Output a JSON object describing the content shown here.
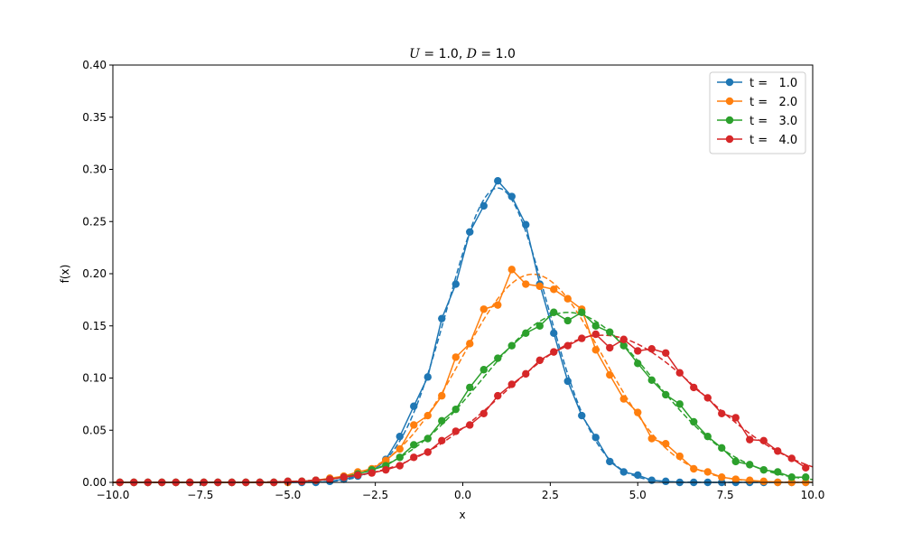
{
  "chart_data": {
    "type": "line",
    "title": "U = 1.0, D = 1.0",
    "xlabel": "x",
    "ylabel": "f(x)",
    "xlim": [
      -10,
      10
    ],
    "ylim": [
      0,
      0.4
    ],
    "xticks": [
      -10,
      -7.5,
      -5,
      -2.5,
      0,
      2.5,
      5,
      7.5,
      10
    ],
    "xtick_labels": [
      "−10.0",
      "−7.5",
      "−5.0",
      "−2.5",
      "0.0",
      "2.5",
      "5.0",
      "7.5",
      "10.0"
    ],
    "yticks": [
      0,
      0.05,
      0.1,
      0.15,
      0.2,
      0.25,
      0.3,
      0.35,
      0.4
    ],
    "ytick_labels": [
      "0.00",
      "0.05",
      "0.10",
      "0.15",
      "0.20",
      "0.25",
      "0.30",
      "0.35",
      "0.40"
    ],
    "grid": false,
    "legend_position": "top-right",
    "x": [
      -9.8,
      -9.4,
      -9.0,
      -8.6,
      -8.2,
      -7.8,
      -7.4,
      -7.0,
      -6.6,
      -6.2,
      -5.8,
      -5.4,
      -5.0,
      -4.6,
      -4.2,
      -3.8,
      -3.4,
      -3.0,
      -2.6,
      -2.2,
      -1.8,
      -1.4,
      -1.0,
      -0.6,
      -0.2,
      0.2,
      0.6,
      1.0,
      1.4,
      1.8,
      2.2,
      2.6,
      3.0,
      3.4,
      3.8,
      4.2,
      4.6,
      5.0,
      5.4,
      5.8,
      6.2,
      6.6,
      7.0,
      7.4,
      7.8,
      8.2,
      8.6,
      9.0,
      9.4,
      9.8
    ],
    "series": [
      {
        "name": "t =   1.0",
        "color": "#1f77b4",
        "t": 1.0,
        "values": [
          0,
          0,
          0,
          0,
          0,
          0,
          0,
          0,
          0,
          0,
          0,
          0,
          0,
          0,
          0,
          0.001,
          0.003,
          0.006,
          0.01,
          0.022,
          0.044,
          0.073,
          0.101,
          0.157,
          0.19,
          0.24,
          0.265,
          0.289,
          0.274,
          0.247,
          0.19,
          0.143,
          0.097,
          0.064,
          0.043,
          0.02,
          0.01,
          0.007,
          0.002,
          0.001,
          0,
          0,
          0,
          0,
          0,
          0,
          0,
          0,
          0,
          0
        ]
      },
      {
        "name": "t =   2.0",
        "color": "#ff7f0e",
        "t": 2.0,
        "values": [
          0,
          0,
          0,
          0,
          0,
          0,
          0,
          0,
          0,
          0,
          0,
          0,
          0,
          0.001,
          0.002,
          0.004,
          0.006,
          0.01,
          0.013,
          0.021,
          0.032,
          0.055,
          0.064,
          0.083,
          0.12,
          0.133,
          0.166,
          0.17,
          0.204,
          0.19,
          0.188,
          0.185,
          0.176,
          0.166,
          0.127,
          0.103,
          0.08,
          0.067,
          0.042,
          0.037,
          0.025,
          0.013,
          0.01,
          0.005,
          0.003,
          0.002,
          0.001,
          0,
          0,
          0
        ]
      },
      {
        "name": "t =   3.0",
        "color": "#2ca02c",
        "t": 3.0,
        "values": [
          0,
          0,
          0,
          0,
          0,
          0,
          0,
          0,
          0,
          0,
          0,
          0,
          0.001,
          0.001,
          0.002,
          0.003,
          0.005,
          0.008,
          0.012,
          0.016,
          0.024,
          0.036,
          0.042,
          0.059,
          0.07,
          0.091,
          0.108,
          0.119,
          0.131,
          0.143,
          0.15,
          0.163,
          0.155,
          0.163,
          0.15,
          0.144,
          0.131,
          0.114,
          0.098,
          0.084,
          0.075,
          0.058,
          0.044,
          0.033,
          0.02,
          0.017,
          0.012,
          0.01,
          0.005,
          0.005
        ]
      },
      {
        "name": "t =   4.0",
        "color": "#d62728",
        "t": 4.0,
        "values": [
          0,
          0,
          0,
          0,
          0,
          0,
          0,
          0,
          0,
          0,
          0,
          0,
          0.001,
          0.001,
          0.002,
          0.003,
          0.005,
          0.007,
          0.009,
          0.012,
          0.016,
          0.024,
          0.029,
          0.04,
          0.049,
          0.055,
          0.066,
          0.083,
          0.094,
          0.104,
          0.117,
          0.125,
          0.131,
          0.138,
          0.142,
          0.129,
          0.137,
          0.126,
          0.128,
          0.124,
          0.105,
          0.091,
          0.081,
          0.066,
          0.062,
          0.041,
          0.04,
          0.03,
          0.023,
          0.014
        ]
      }
    ],
    "fit_curves": {
      "style": "dashed",
      "U": 1.0,
      "D": 1.0,
      "description_formula": "gaussian mean U*t variance 2*D*t"
    }
  }
}
